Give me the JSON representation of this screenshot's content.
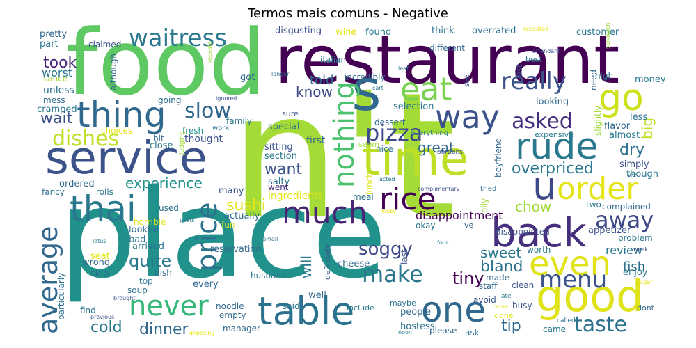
{
  "title": "Termos mais comuns - Negative",
  "words": [
    {
      "text": "n't",
      "color": "#a5db36"
    },
    {
      "text": "place",
      "color": "#21918c"
    },
    {
      "text": "food",
      "color": "#5ec962"
    },
    {
      "text": "restaurant",
      "color": "#440154"
    },
    {
      "text": "service",
      "color": "#3b528b"
    },
    {
      "text": "s",
      "color": "#31688e"
    },
    {
      "text": "time",
      "color": "#bddf26"
    },
    {
      "text": "back",
      "color": "#472f7d"
    },
    {
      "text": "table",
      "color": "#2c728e"
    },
    {
      "text": "good",
      "color": "#e0e21a"
    },
    {
      "text": "rude",
      "color": "#2a788e"
    },
    {
      "text": "thing",
      "color": "#31688e"
    },
    {
      "text": "eat",
      "color": "#7ad151"
    },
    {
      "text": "go",
      "color": "#cde11d"
    },
    {
      "text": "way",
      "color": "#3b528b"
    },
    {
      "text": "u",
      "color": "#3e4989"
    },
    {
      "text": "one",
      "color": "#31688e"
    },
    {
      "text": "order",
      "color": "#e5e419"
    },
    {
      "text": "even",
      "color": "#e0e21a"
    },
    {
      "text": "thai",
      "color": "#2a788e"
    },
    {
      "text": "much",
      "color": "#482475"
    },
    {
      "text": "rice",
      "color": "#440154"
    },
    {
      "text": "never",
      "color": "#35b779"
    },
    {
      "text": "average",
      "color": "#31688e"
    },
    {
      "text": "price",
      "color": "#2c728e"
    },
    {
      "text": "nothing",
      "color": "#4ac16d"
    },
    {
      "text": "waitress",
      "color": "#2a788e"
    },
    {
      "text": "pizza",
      "color": "#3e4989"
    },
    {
      "text": "really",
      "color": "#3b528b"
    },
    {
      "text": "dishes",
      "color": "#bddf26"
    },
    {
      "text": "slow",
      "color": "#31688e"
    },
    {
      "text": "menu",
      "color": "#3b528b"
    },
    {
      "text": "make",
      "color": "#2a788e"
    },
    {
      "text": "taste",
      "color": "#2c728e"
    },
    {
      "text": "away",
      "color": "#3e4989"
    },
    {
      "text": "asked",
      "color": "#472f7d"
    },
    {
      "text": "overpriced",
      "color": "#2a788e"
    },
    {
      "text": "took",
      "color": "#482878"
    },
    {
      "text": "wait",
      "color": "#3b528b"
    },
    {
      "text": "soggy",
      "color": "#3e4989"
    },
    {
      "text": "sushi",
      "color": "#e5e419"
    },
    {
      "text": "experience",
      "color": "#21918c"
    },
    {
      "text": "want",
      "color": "#3b528b"
    },
    {
      "text": "great",
      "color": "#31688e"
    },
    {
      "text": "sweet",
      "color": "#2a788e"
    },
    {
      "text": "bland",
      "color": "#2c728e"
    },
    {
      "text": "tiny",
      "color": "#440154"
    },
    {
      "text": "quite",
      "color": "#2a788e"
    },
    {
      "text": "dinner",
      "color": "#31688e"
    },
    {
      "text": "cold",
      "color": "#2a788e"
    },
    {
      "text": "tip",
      "color": "#31688e"
    },
    {
      "text": "dry",
      "color": "#2c728e"
    },
    {
      "text": "chow",
      "color": "#a0da39"
    },
    {
      "text": "big",
      "color": "#bddf26"
    },
    {
      "text": "will",
      "color": "#2a788e"
    },
    {
      "text": "know",
      "color": "#3e4989"
    },
    {
      "text": "told",
      "color": "#31688e"
    },
    {
      "text": "disappointment",
      "color": "#440154"
    },
    {
      "text": "fish",
      "color": "#2c728e"
    },
    {
      "text": "review",
      "color": "#2a788e"
    },
    {
      "text": "pretty",
      "color": "#31688e"
    },
    {
      "text": "part",
      "color": "#2c728e"
    },
    {
      "text": "claimed",
      "color": "#3b528b"
    },
    {
      "text": "worst",
      "color": "#2a788e"
    },
    {
      "text": "sauce",
      "color": "#a0da39"
    },
    {
      "text": "unless",
      "color": "#2c728e"
    },
    {
      "text": "mess",
      "color": "#31688e"
    },
    {
      "text": "cramped",
      "color": "#2a788e"
    },
    {
      "text": "although",
      "color": "#31688e"
    },
    {
      "text": "going",
      "color": "#2c728e"
    },
    {
      "text": "ignored",
      "color": "#3b528b"
    },
    {
      "text": "family",
      "color": "#2a788e"
    },
    {
      "text": "work",
      "color": "#2c728e"
    },
    {
      "text": "choices",
      "color": "#e5e419"
    },
    {
      "text": "bit",
      "color": "#31688e"
    },
    {
      "text": "close",
      "color": "#2a788e"
    },
    {
      "text": "fresh",
      "color": "#21918c"
    },
    {
      "text": "thought",
      "color": "#3b528b"
    },
    {
      "text": "judging",
      "color": "#a0da39"
    },
    {
      "text": "special",
      "color": "#2c728e"
    },
    {
      "text": "sitting",
      "color": "#3b528b"
    },
    {
      "text": "first",
      "color": "#31688e"
    },
    {
      "text": "section",
      "color": "#2a788e"
    },
    {
      "text": "salty",
      "color": "#2c728e"
    },
    {
      "text": "went",
      "color": "#482878"
    },
    {
      "text": "ingredients",
      "color": "#e5e419"
    },
    {
      "text": "disgusting",
      "color": "#3b528b"
    },
    {
      "text": "wine",
      "color": "#e5e419"
    },
    {
      "text": "found",
      "color": "#2a788e"
    },
    {
      "text": "think",
      "color": "#2c728e"
    },
    {
      "text": "overrated",
      "color": "#2c728e"
    },
    {
      "text": "repeated",
      "color": "#e5e419"
    },
    {
      "text": "customer",
      "color": "#2a788e"
    },
    {
      "text": "leaf",
      "color": "#2c728e"
    },
    {
      "text": "different",
      "color": "#31688e"
    },
    {
      "text": "attendant",
      "color": "#3b528b"
    },
    {
      "text": "best",
      "color": "#2a788e"
    },
    {
      "text": "sandwich",
      "color": "#a0da39"
    },
    {
      "text": "list",
      "color": "#3b528b"
    },
    {
      "text": "italian",
      "color": "#2a788e"
    },
    {
      "text": "incredibly",
      "color": "#31688e"
    },
    {
      "text": "longer",
      "color": "#2c728e"
    },
    {
      "text": "repeats",
      "color": "#a0da39"
    },
    {
      "text": "got",
      "color": "#31688e"
    },
    {
      "text": "cart",
      "color": "#2a788e"
    },
    {
      "text": "see",
      "color": "#3b528b"
    },
    {
      "text": "need",
      "color": "#31688e"
    },
    {
      "text": "high",
      "color": "#2c728e"
    },
    {
      "text": "throw",
      "color": "#3b528b"
    },
    {
      "text": "money",
      "color": "#2a788e"
    },
    {
      "text": "looking",
      "color": "#31688e"
    },
    {
      "text": "selection",
      "color": "#2a788e"
    },
    {
      "text": "slightly",
      "color": "#a0da39"
    },
    {
      "text": "less",
      "color": "#2c728e"
    },
    {
      "text": "flavor",
      "color": "#31688e"
    },
    {
      "text": "almost",
      "color": "#2a788e"
    },
    {
      "text": "sure",
      "color": "#3b528b"
    },
    {
      "text": "dessert",
      "color": "#31688e"
    },
    {
      "text": "everything",
      "color": "#2a788e"
    },
    {
      "text": "seem",
      "color": "#a0da39"
    },
    {
      "text": "portions",
      "color": "#3b528b"
    },
    {
      "text": "nice",
      "color": "#2c728e"
    },
    {
      "text": "boyfriend",
      "color": "#31688e"
    },
    {
      "text": "expensive",
      "color": "#2a788e"
    },
    {
      "text": "simply",
      "color": "#3b528b"
    },
    {
      "text": "ive",
      "color": "#2c728e"
    },
    {
      "text": "though",
      "color": "#2a788e"
    },
    {
      "text": "ordered",
      "color": "#31688e"
    },
    {
      "text": "fancy",
      "color": "#2c728e"
    },
    {
      "text": "rolls",
      "color": "#2a788e"
    },
    {
      "text": "many",
      "color": "#3b528b"
    },
    {
      "text": "acted",
      "color": "#2a788e"
    },
    {
      "text": "lunch",
      "color": "#e5e419"
    },
    {
      "text": "complimentary",
      "color": "#3b528b"
    },
    {
      "text": "tried",
      "color": "#31688e"
    },
    {
      "text": "meal",
      "color": "#2c728e"
    },
    {
      "text": "lousy",
      "color": "#e5e419"
    },
    {
      "text": "oily",
      "color": "#a0da39"
    },
    {
      "text": "ve",
      "color": "#31688e"
    },
    {
      "text": "disappointed",
      "color": "#3b528b"
    },
    {
      "text": "two",
      "color": "#2a788e"
    },
    {
      "text": "complained",
      "color": "#31688e"
    },
    {
      "text": "appetizer",
      "color": "#3b528b"
    },
    {
      "text": "problem",
      "color": "#2a788e"
    },
    {
      "text": "used",
      "color": "#2c728e"
    },
    {
      "text": "horrible",
      "color": "#e5e419"
    },
    {
      "text": "posts",
      "color": "#2a788e"
    },
    {
      "text": "fun",
      "color": "#e5e419"
    },
    {
      "text": "actually",
      "color": "#31688e"
    },
    {
      "text": "okay",
      "color": "#2a788e"
    },
    {
      "text": "looked",
      "color": "#31688e"
    },
    {
      "text": "bad",
      "color": "#2c728e"
    },
    {
      "text": "lotus",
      "color": "#2a788e"
    },
    {
      "text": "small",
      "color": "#31688e"
    },
    {
      "text": "four",
      "color": "#2a788e"
    },
    {
      "text": "week",
      "color": "#3b528b"
    },
    {
      "text": "arrived",
      "color": "#2c728e"
    },
    {
      "text": "reservation",
      "color": "#31688e"
    },
    {
      "text": "worth",
      "color": "#2a788e"
    },
    {
      "text": "seat",
      "color": "#e5e419"
    },
    {
      "text": "wrong",
      "color": "#31688e"
    },
    {
      "text": "skip",
      "color": "#2c728e"
    },
    {
      "text": "cheese",
      "color": "#31688e"
    },
    {
      "text": "last",
      "color": "#3b528b"
    },
    {
      "text": "enjoy",
      "color": "#2a788e"
    },
    {
      "text": "made",
      "color": "#31688e"
    },
    {
      "text": "top",
      "color": "#2a788e"
    },
    {
      "text": "dish",
      "color": "#31688e"
    },
    {
      "text": "definitely",
      "color": "#3b528b"
    },
    {
      "text": "husband",
      "color": "#2a788e"
    },
    {
      "text": "staff",
      "color": "#31688e"
    },
    {
      "text": "clean",
      "color": "#3b528b"
    },
    {
      "text": "sugar",
      "color": "#e5e419"
    },
    {
      "text": "soup",
      "color": "#2c728e"
    },
    {
      "text": "every",
      "color": "#31688e"
    },
    {
      "text": "brought",
      "color": "#3b528b"
    },
    {
      "text": "well",
      "color": "#31688e"
    },
    {
      "text": "maybe",
      "color": "#2c728e"
    },
    {
      "text": "avoid",
      "color": "#3b528b"
    },
    {
      "text": "ate",
      "color": "#2a788e"
    },
    {
      "text": "find",
      "color": "#2c728e"
    },
    {
      "text": "noodle",
      "color": "#31688e"
    },
    {
      "text": "include",
      "color": "#2a788e"
    },
    {
      "text": "busy",
      "color": "#3b528b"
    },
    {
      "text": "come",
      "color": "#e5e419"
    },
    {
      "text": "dont",
      "color": "#31688e"
    },
    {
      "text": "particularly",
      "color": "#2c728e"
    },
    {
      "text": "empty",
      "color": "#31688e"
    },
    {
      "text": "said",
      "color": "#2a788e"
    },
    {
      "text": "people",
      "color": "#31688e"
    },
    {
      "text": "done",
      "color": "#e5e419"
    },
    {
      "text": "called",
      "color": "#2c728e"
    },
    {
      "text": "previous",
      "color": "#3b528b"
    },
    {
      "text": "imposing",
      "color": "#e5e419"
    },
    {
      "text": "manager",
      "color": "#31688e"
    },
    {
      "text": "hostess",
      "color": "#2c728e"
    },
    {
      "text": "noon",
      "color": "#2a788e"
    },
    {
      "text": "please",
      "color": "#31688e"
    },
    {
      "text": "ask",
      "color": "#2c728e"
    },
    {
      "text": "came",
      "color": "#2a788e"
    }
  ]
}
